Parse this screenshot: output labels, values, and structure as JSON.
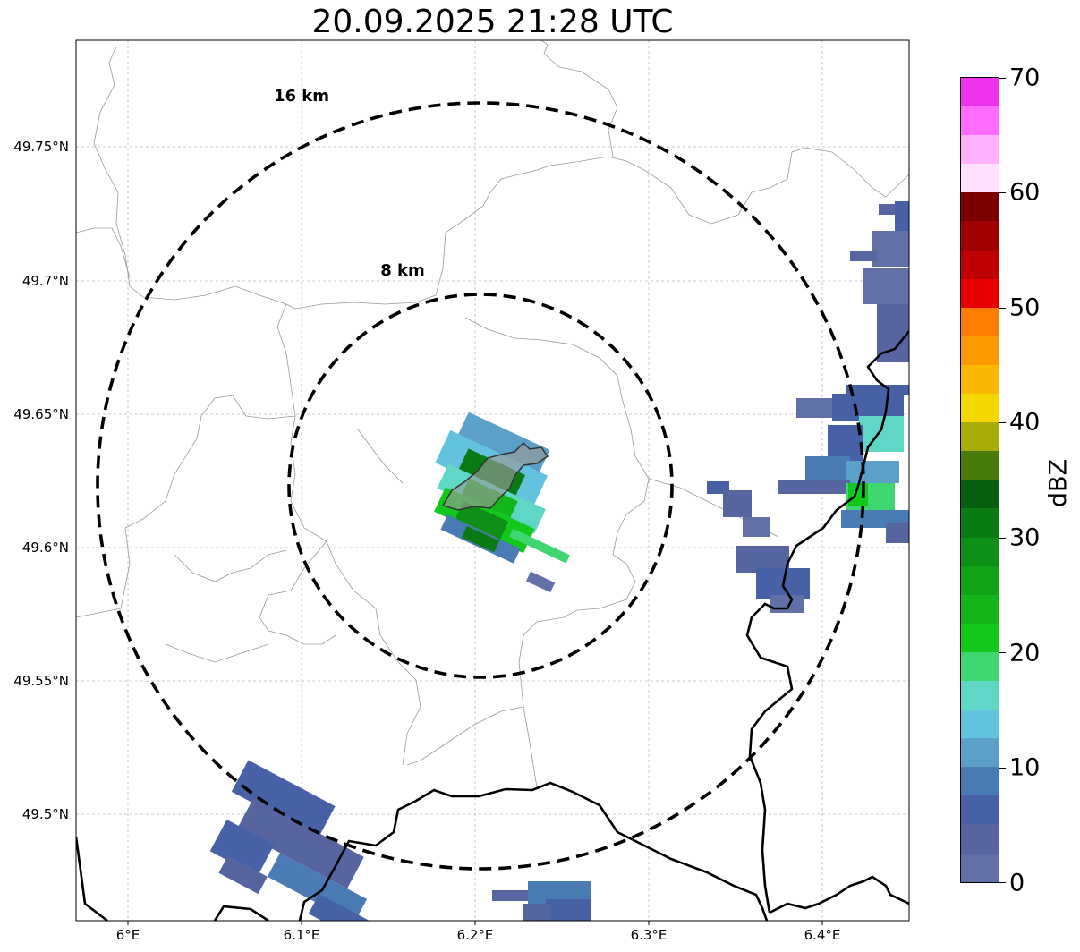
{
  "title": "20.09.2025 21:28 UTC",
  "map": {
    "lat_labels": [
      "49.75°N",
      "49.7°N",
      "49.65°N",
      "49.6°N",
      "49.55°N",
      "49.5°N"
    ],
    "lon_labels": [
      "6°E",
      "6.1°E",
      "6.2°E",
      "6.3°E",
      "6.4°E"
    ],
    "range_rings": [
      {
        "label": "16 km",
        "radius_km": 16
      },
      {
        "label": "8 km",
        "radius_km": 8
      }
    ],
    "colors": {
      "ring": "#000000",
      "border": "#000000",
      "commune_lines": "#999999",
      "grid": "#bbbbbb",
      "city_fill": "#999999"
    }
  },
  "colorbar": {
    "label": "dBZ",
    "ticks": [
      "0",
      "10",
      "20",
      "30",
      "40",
      "50",
      "60",
      "70"
    ],
    "range": [
      0,
      70
    ],
    "colors": [
      "#6170a6",
      "#56659f",
      "#4661a6",
      "#4a7bb5",
      "#5aa0c8",
      "#63c2dd",
      "#5fd6c6",
      "#3ed66e",
      "#12c81a",
      "#12b51a",
      "#12a318",
      "#0e8f16",
      "#0a7a12",
      "#065f0e",
      "#487a0c",
      "#a8ac08",
      "#f5d800",
      "#f9b800",
      "#fb9a00",
      "#fc7d00",
      "#e80000",
      "#c00000",
      "#a00000",
      "#7a0000",
      "#ffe0ff",
      "#ffb0ff",
      "#ff6cff",
      "#ee32ee"
    ]
  }
}
